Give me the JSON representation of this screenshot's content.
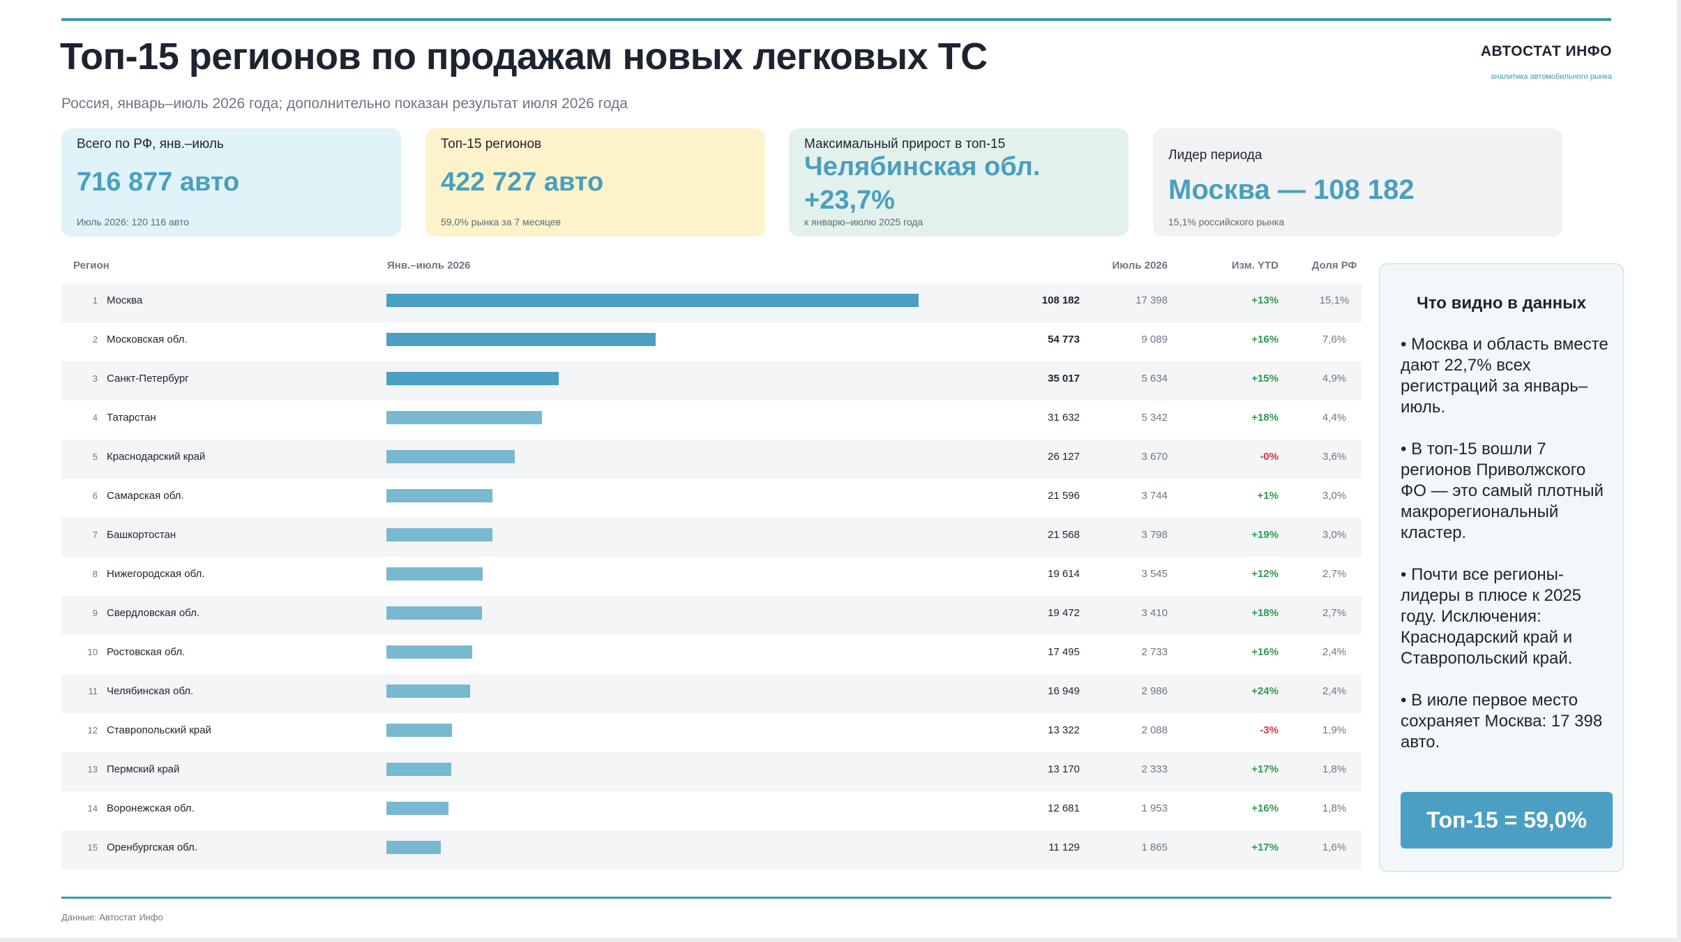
{
  "header": {
    "title": "Топ-15 регионов по продажам новых легковых ТС",
    "subtitle": "Россия, январь–июль 2026 года; дополнительно показан результат июля 2026 года"
  },
  "brand": {
    "name": "АВТОСТАТ ИНФО",
    "tagline": "аналитика автомобильного рынка"
  },
  "kpis": [
    {
      "label": "Всего по РФ, янв.–июль",
      "value": "716 877 авто",
      "note": "Июль 2026: 120 116 авто"
    },
    {
      "label": "Топ-15 регионов",
      "value": "422 727 авто",
      "note": "59,0% рынка за 7 месяцев"
    },
    {
      "label": "Максимальный прирост в топ-15",
      "value_line1": "Челябинская обл.",
      "value_line2": "+23,7%",
      "note": "к январю–июлю 2025 года"
    },
    {
      "label": "Лидер периода",
      "value": "Москва — 108 182",
      "note": "15,1% российского рынка"
    }
  ],
  "table": {
    "columns": {
      "region": "Регион",
      "ytd": "Янв.–июль 2026",
      "july": "Июль 2026",
      "change": "Изм. YTD",
      "share": "Доля РФ"
    },
    "bar_max": 108182,
    "rows": [
      {
        "rank": "1",
        "region": "Москва",
        "ytd": "108 182",
        "ytd_value": 108182,
        "july": "17 398",
        "change": "+13%",
        "share": "15,1%",
        "highlight": true
      },
      {
        "rank": "2",
        "region": "Московская обл.",
        "ytd": "54 773",
        "ytd_value": 54773,
        "july": "9 089",
        "change": "+16%",
        "share": "7,6%",
        "highlight": true
      },
      {
        "rank": "3",
        "region": "Санкт-Петербург",
        "ytd": "35 017",
        "ytd_value": 35017,
        "july": "5 634",
        "change": "+15%",
        "share": "4,9%",
        "highlight": true
      },
      {
        "rank": "4",
        "region": "Татарстан",
        "ytd": "31 632",
        "ytd_value": 31632,
        "july": "5 342",
        "change": "+18%",
        "share": "4,4%",
        "highlight": false
      },
      {
        "rank": "5",
        "region": "Краснодарский край",
        "ytd": "26 127",
        "ytd_value": 26127,
        "july": "3 670",
        "change": "-0%",
        "share": "3,6%",
        "highlight": false
      },
      {
        "rank": "6",
        "region": "Самарская обл.",
        "ytd": "21 596",
        "ytd_value": 21596,
        "july": "3 744",
        "change": "+1%",
        "share": "3,0%",
        "highlight": false
      },
      {
        "rank": "7",
        "region": "Башкортостан",
        "ytd": "21 568",
        "ytd_value": 21568,
        "july": "3 798",
        "change": "+19%",
        "share": "3,0%",
        "highlight": false
      },
      {
        "rank": "8",
        "region": "Нижегородская обл.",
        "ytd": "19 614",
        "ytd_value": 19614,
        "july": "3 545",
        "change": "+12%",
        "share": "2,7%",
        "highlight": false
      },
      {
        "rank": "9",
        "region": "Свердловская обл.",
        "ytd": "19 472",
        "ytd_value": 19472,
        "july": "3 410",
        "change": "+18%",
        "share": "2,7%",
        "highlight": false
      },
      {
        "rank": "10",
        "region": "Ростовская обл.",
        "ytd": "17 495",
        "ytd_value": 17495,
        "july": "2 733",
        "change": "+16%",
        "share": "2,4%",
        "highlight": false
      },
      {
        "rank": "11",
        "region": "Челябинская обл.",
        "ytd": "16 949",
        "ytd_value": 16949,
        "july": "2 986",
        "change": "+24%",
        "share": "2,4%",
        "highlight": false
      },
      {
        "rank": "12",
        "region": "Ставропольский край",
        "ytd": "13 322",
        "ytd_value": 13322,
        "july": "2 088",
        "change": "-3%",
        "share": "1,9%",
        "highlight": false
      },
      {
        "rank": "13",
        "region": "Пермский край",
        "ytd": "13 170",
        "ytd_value": 13170,
        "july": "2 333",
        "change": "+17%",
        "share": "1,8%",
        "highlight": false
      },
      {
        "rank": "14",
        "region": "Воронежская обл.",
        "ytd": "12 681",
        "ytd_value": 12681,
        "july": "1 953",
        "change": "+16%",
        "share": "1,8%",
        "highlight": false
      },
      {
        "rank": "15",
        "region": "Оренбургская обл.",
        "ytd": "11 129",
        "ytd_value": 11129,
        "july": "1 865",
        "change": "+17%",
        "share": "1,6%",
        "highlight": false
      }
    ]
  },
  "insights": {
    "title": "Что видно в данных",
    "items": [
      "• Москва и область вместе дают 22,7% всех регистраций за январь–июль.",
      "• В топ-15 вошли 7 регионов Приволжского ФО — это самый плотный макрорегиональный кластер.",
      "• Почти все регионы-лидеры в плюсе к 2025 году. Исключения: Краснодарский край и Ставропольский край.",
      "• В июле первое место сохраняет Москва: 17 398 авто."
    ],
    "badge": "Топ-15 = 59,0%"
  },
  "footer": {
    "source": "Данные: Автостат Инфо"
  },
  "colors": {
    "accent": "#3c9aaa",
    "bar_top3": "#4a9fc3",
    "bar_rest": "#78b8d0",
    "positive": "#2e9a52",
    "negative": "#d8344a"
  }
}
